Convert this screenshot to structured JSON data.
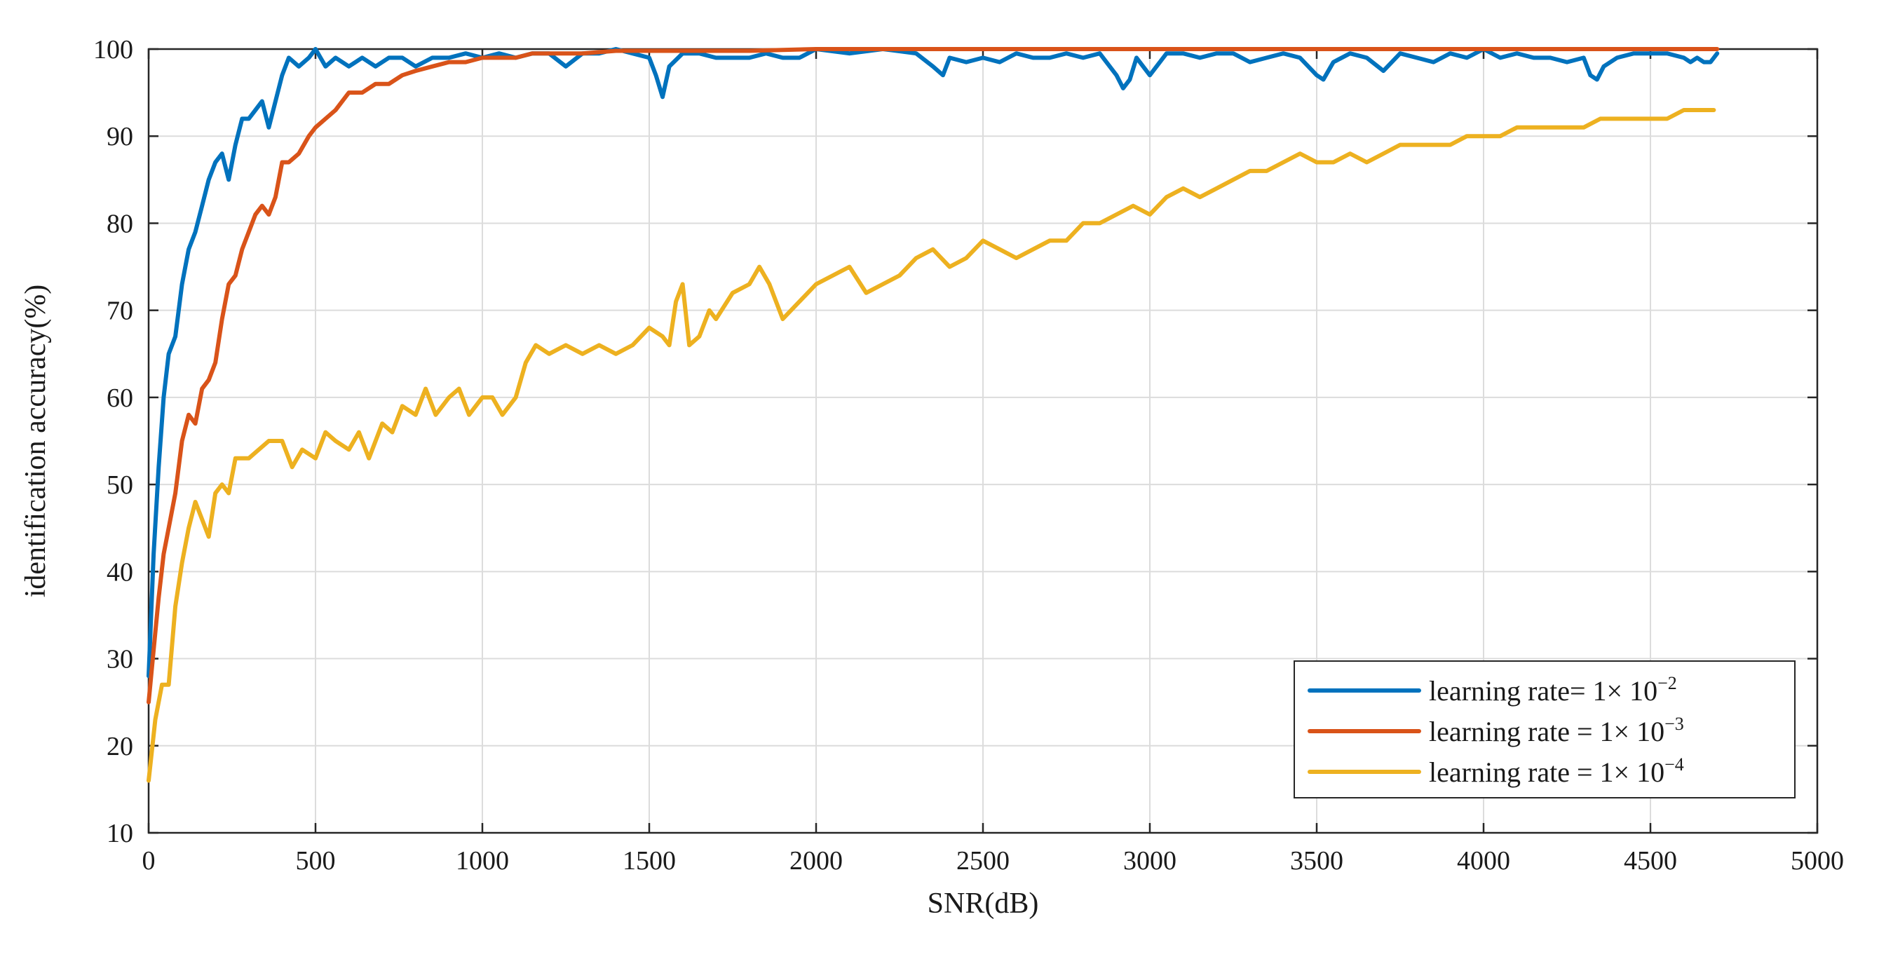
{
  "chart_data": {
    "type": "line",
    "title": "",
    "xlabel": "SNR(dB)",
    "ylabel": "identification accuracy(%)",
    "xlim": [
      0,
      5000
    ],
    "ylim": [
      10,
      100
    ],
    "xticks": [
      0,
      500,
      1000,
      1500,
      2000,
      2500,
      3000,
      3500,
      4000,
      4500,
      5000
    ],
    "yticks": [
      10,
      20,
      30,
      40,
      50,
      60,
      70,
      80,
      90,
      100
    ],
    "grid": true,
    "legend_position": "bottom-right",
    "series": [
      {
        "name": "learning rate=  1× 10⁻²",
        "legend_prefix": "learning rate=  1× 10",
        "legend_exponent": "−2",
        "color": "#0072BD",
        "x": [
          0,
          15,
          30,
          45,
          60,
          80,
          100,
          120,
          140,
          160,
          180,
          200,
          220,
          240,
          260,
          280,
          300,
          320,
          340,
          360,
          380,
          400,
          420,
          450,
          480,
          500,
          530,
          560,
          600,
          640,
          680,
          720,
          760,
          800,
          850,
          900,
          950,
          1000,
          1050,
          1100,
          1150,
          1200,
          1250,
          1300,
          1350,
          1400,
          1450,
          1500,
          1520,
          1540,
          1560,
          1600,
          1650,
          1700,
          1750,
          1800,
          1850,
          1900,
          1950,
          2000,
          2100,
          2200,
          2300,
          2350,
          2380,
          2400,
          2450,
          2500,
          2550,
          2600,
          2650,
          2700,
          2750,
          2800,
          2850,
          2900,
          2920,
          2940,
          2960,
          3000,
          3050,
          3100,
          3150,
          3200,
          3250,
          3300,
          3350,
          3400,
          3450,
          3500,
          3520,
          3550,
          3600,
          3650,
          3700,
          3750,
          3800,
          3850,
          3900,
          3950,
          4000,
          4050,
          4100,
          4150,
          4200,
          4250,
          4300,
          4320,
          4340,
          4360,
          4400,
          4450,
          4500,
          4550,
          4600,
          4620,
          4640,
          4660,
          4680,
          4700
        ],
        "y": [
          28,
          42,
          52,
          60,
          65,
          67,
          73,
          77,
          79,
          82,
          85,
          87,
          88,
          85,
          89,
          92,
          92,
          93,
          94,
          91,
          94,
          97,
          99,
          98,
          99,
          100,
          98,
          99,
          98,
          99,
          98,
          99,
          99,
          98,
          99,
          99,
          99.5,
          99,
          99.5,
          99,
          99.5,
          99.5,
          98,
          99.5,
          99.5,
          100,
          99.5,
          99,
          97,
          94.5,
          98,
          99.5,
          99.5,
          99,
          99,
          99,
          99.5,
          99,
          99,
          100,
          99.5,
          100,
          99.5,
          98,
          97,
          99,
          98.5,
          99,
          98.5,
          99.5,
          99,
          99,
          99.5,
          99,
          99.5,
          97,
          95.5,
          96.5,
          99,
          97,
          99.5,
          99.5,
          99,
          99.5,
          99.5,
          98.5,
          99,
          99.5,
          99,
          97,
          96.5,
          98.5,
          99.5,
          99,
          97.5,
          99.5,
          99,
          98.5,
          99.5,
          99,
          100,
          99,
          99.5,
          99,
          99,
          98.5,
          99,
          97,
          96.5,
          98,
          99,
          99.5,
          99.5,
          99.5,
          99,
          98.5,
          99,
          98.5,
          98.5,
          99.5
        ]
      },
      {
        "name": "learning rate = 1× 10⁻³",
        "legend_prefix": "learning rate = 1× 10",
        "legend_exponent": "−3",
        "color": "#D95319",
        "x": [
          0,
          15,
          30,
          45,
          60,
          80,
          100,
          120,
          140,
          160,
          180,
          200,
          220,
          240,
          260,
          280,
          300,
          320,
          340,
          360,
          380,
          400,
          420,
          450,
          480,
          500,
          530,
          560,
          600,
          640,
          680,
          720,
          760,
          800,
          850,
          900,
          950,
          1000,
          1050,
          1100,
          1150,
          1200,
          1300,
          1400,
          1500,
          1600,
          1800,
          2000,
          2500,
          3000,
          3500,
          4000,
          4500,
          4700
        ],
        "y": [
          25,
          31,
          37,
          42,
          45,
          49,
          55,
          58,
          57,
          61,
          62,
          64,
          69,
          73,
          74,
          77,
          79,
          81,
          82,
          81,
          83,
          87,
          87,
          88,
          90,
          91,
          92,
          93,
          95,
          95,
          96,
          96,
          97,
          97.5,
          98,
          98.5,
          98.5,
          99,
          99,
          99,
          99.5,
          99.5,
          99.5,
          99.8,
          99.8,
          99.8,
          99.8,
          100,
          100,
          100,
          100,
          100,
          100,
          100
        ]
      },
      {
        "name": "learning rate = 1× 10⁻⁴",
        "legend_prefix": "learning rate = 1× 10",
        "legend_exponent": "−4",
        "color": "#EDB120",
        "x": [
          0,
          20,
          40,
          60,
          80,
          100,
          120,
          140,
          160,
          180,
          200,
          220,
          240,
          260,
          280,
          300,
          330,
          360,
          400,
          430,
          460,
          500,
          530,
          560,
          600,
          630,
          660,
          700,
          730,
          760,
          800,
          830,
          860,
          900,
          930,
          960,
          1000,
          1030,
          1060,
          1100,
          1130,
          1160,
          1200,
          1250,
          1300,
          1350,
          1400,
          1450,
          1500,
          1540,
          1560,
          1580,
          1600,
          1620,
          1650,
          1680,
          1700,
          1750,
          1800,
          1830,
          1860,
          1900,
          1950,
          2000,
          2050,
          2100,
          2150,
          2200,
          2250,
          2300,
          2350,
          2400,
          2450,
          2500,
          2550,
          2600,
          2650,
          2700,
          2750,
          2800,
          2850,
          2900,
          2950,
          3000,
          3050,
          3100,
          3150,
          3200,
          3250,
          3300,
          3350,
          3400,
          3450,
          3500,
          3550,
          3600,
          3650,
          3700,
          3750,
          3800,
          3850,
          3900,
          3950,
          4000,
          4050,
          4100,
          4150,
          4200,
          4250,
          4300,
          4350,
          4400,
          4450,
          4500,
          4550,
          4600,
          4630,
          4660,
          4690
        ],
        "y": [
          16,
          23,
          27,
          27,
          36,
          41,
          45,
          48,
          46,
          44,
          49,
          50,
          49,
          53,
          53,
          53,
          54,
          55,
          55,
          52,
          54,
          53,
          56,
          55,
          54,
          56,
          53,
          57,
          56,
          59,
          58,
          61,
          58,
          60,
          61,
          58,
          60,
          60,
          58,
          60,
          64,
          66,
          65,
          66,
          65,
          66,
          65,
          66,
          68,
          67,
          66,
          71,
          73,
          66,
          67,
          70,
          69,
          72,
          73,
          75,
          73,
          69,
          71,
          73,
          74,
          75,
          72,
          73,
          74,
          76,
          77,
          75,
          76,
          78,
          77,
          76,
          77,
          78,
          78,
          80,
          80,
          81,
          82,
          81,
          83,
          84,
          83,
          84,
          85,
          86,
          86,
          87,
          88,
          87,
          87,
          88,
          87,
          88,
          89,
          89,
          89,
          89,
          90,
          90,
          90,
          91,
          91,
          91,
          91,
          91,
          92,
          92,
          92,
          92,
          92,
          93,
          93,
          93,
          93
        ]
      }
    ]
  }
}
